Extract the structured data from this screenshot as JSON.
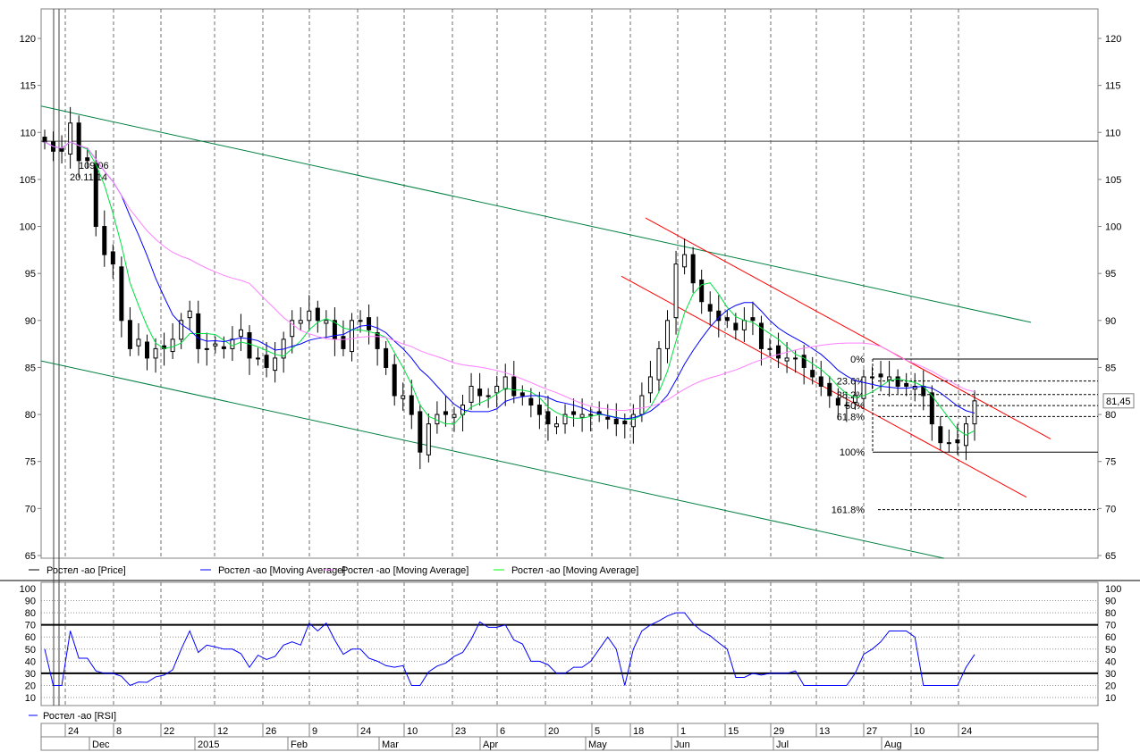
{
  "chart_data": {
    "type": "candlestick",
    "price_axis": {
      "ticks": [
        65,
        70,
        75,
        80,
        85,
        90,
        95,
        100,
        105,
        110,
        115,
        120
      ],
      "ylim": [
        64.7,
        123.1
      ]
    },
    "closes": [
      109,
      108,
      108,
      111,
      107,
      107,
      100,
      97,
      96,
      90,
      87,
      88,
      86,
      87,
      87,
      88,
      90,
      91,
      87,
      87,
      87.5,
      87,
      88,
      89,
      86,
      86,
      85,
      86,
      88,
      90,
      90,
      91,
      90,
      90,
      88,
      87,
      90,
      90,
      89,
      87,
      85,
      82,
      82,
      80,
      76,
      79,
      80,
      80,
      80,
      81,
      83,
      82,
      82,
      83,
      84,
      82,
      82,
      81,
      80,
      79,
      79,
      80,
      80,
      80,
      80,
      80,
      79.5,
      79,
      79,
      80,
      82,
      84,
      87,
      90,
      96,
      97,
      94,
      92,
      91,
      90,
      90,
      89,
      90,
      90,
      87,
      87,
      86,
      86,
      86,
      85,
      84,
      83,
      82,
      81,
      81,
      82,
      84,
      84,
      84,
      84,
      83,
      83,
      83,
      82,
      79,
      77,
      77,
      77,
      79,
      81.45
    ],
    "legend": [
      {
        "label": "Ростел -ао [Price]",
        "color": "#000000"
      },
      {
        "label": "Ростел -ао [Moving Average]",
        "color": "#0000ff"
      },
      {
        "label": "Ростел -ао [Moving Average]",
        "color": "#ff80ff"
      },
      {
        "label": "Ростел -ао [Moving Average]",
        "color": "#00ff00"
      }
    ],
    "moving_averages": [
      {
        "period": 10,
        "color": "#00e040"
      },
      {
        "period": 20,
        "color": "#0000ff"
      },
      {
        "period": 50,
        "color": "#ff80ff"
      }
    ],
    "hline": {
      "value": 109.06,
      "label": "109,06",
      "date_label": "20.11.14"
    },
    "last_price_label": "81,45",
    "trend_lines": [
      {
        "color": "#008040",
        "from": [
          0,
          112.8
        ],
        "to": [
          1,
          89.8
        ]
      },
      {
        "color": "#008040",
        "from": [
          0,
          85.7
        ],
        "to": [
          1,
          64.7
        ]
      },
      {
        "color": "#ff0000",
        "from": [
          0,
          100.9
        ],
        "to": [
          1,
          77.4
        ]
      },
      {
        "color": "#ff0000",
        "from": [
          0,
          94.7
        ],
        "to": [
          1,
          71.2
        ]
      }
    ],
    "fibonacci": [
      {
        "label": "0%",
        "value": 85.9
      },
      {
        "label": "23.6%",
        "value": 83.56
      },
      {
        "label": "38.2%",
        "value": 82.12
      },
      {
        "label": "50%",
        "value": 80.95
      },
      {
        "label": "61.8%",
        "value": 79.78
      },
      {
        "label": "100%",
        "value": 76.0
      },
      {
        "label": "161.8%",
        "value": 69.88
      }
    ],
    "rsi": {
      "legend": "Ростел -ао [RSI]",
      "color": "#0000ff",
      "period": 14,
      "ticks": [
        10,
        20,
        30,
        40,
        50,
        60,
        70,
        80,
        90,
        100
      ],
      "levels": [
        30,
        70
      ]
    },
    "x_axis": {
      "days": [
        "24",
        "8",
        "22",
        "12",
        "26",
        "9",
        "24",
        "10",
        "23",
        "6",
        "20",
        "5",
        "18",
        "1",
        "15",
        "29",
        "13",
        "27",
        "10",
        "24"
      ],
      "months": [
        "Dec",
        "2015",
        "Feb",
        "Mar",
        "Apr",
        "May",
        "Jun",
        "Jul",
        "Aug"
      ]
    }
  }
}
